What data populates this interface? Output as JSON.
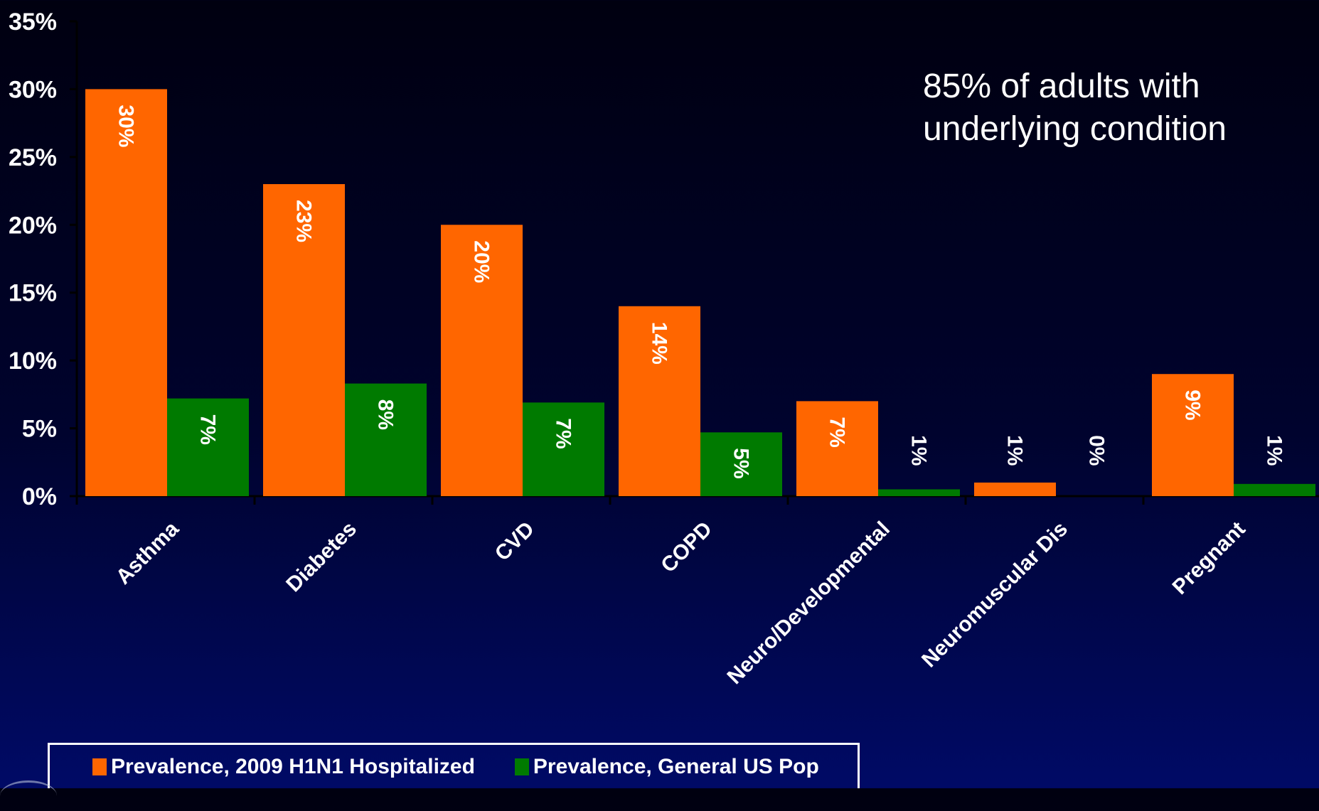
{
  "annotation": {
    "line1": "85% of adults with",
    "line2": "underlying condition"
  },
  "legend": [
    {
      "label": "Prevalence, 2009 H1N1 Hospitalized",
      "color": "#ff6600"
    },
    {
      "label": "Prevalence, General US Pop",
      "color": "#007a00"
    }
  ],
  "chart_data": {
    "type": "bar",
    "categories": [
      "Asthma",
      "Diabetes",
      "CVD",
      "COPD",
      "Neuro/Developmental",
      "Neuromuscular Dis",
      "Pregnant"
    ],
    "series": [
      {
        "name": "Prevalence, 2009 H1N1 Hospitalized",
        "color": "#ff6600",
        "values": [
          30,
          23,
          20,
          14,
          7,
          1,
          9
        ],
        "labels": [
          "30%",
          "23%",
          "20%",
          "14%",
          "7%",
          "1%",
          "9%"
        ]
      },
      {
        "name": "Prevalence, General US Pop",
        "color": "#007a00",
        "values": [
          7.2,
          8.3,
          6.9,
          4.7,
          0.5,
          0,
          0.9
        ],
        "labels": [
          "7%",
          "8%",
          "7%",
          "5%",
          "1%",
          "0%",
          "1%"
        ]
      }
    ],
    "yticks": [
      "0%",
      "5%",
      "10%",
      "15%",
      "20%",
      "25%",
      "30%",
      "35%"
    ],
    "ylim": [
      0,
      35
    ],
    "grid": false,
    "legend_position": "bottom"
  }
}
